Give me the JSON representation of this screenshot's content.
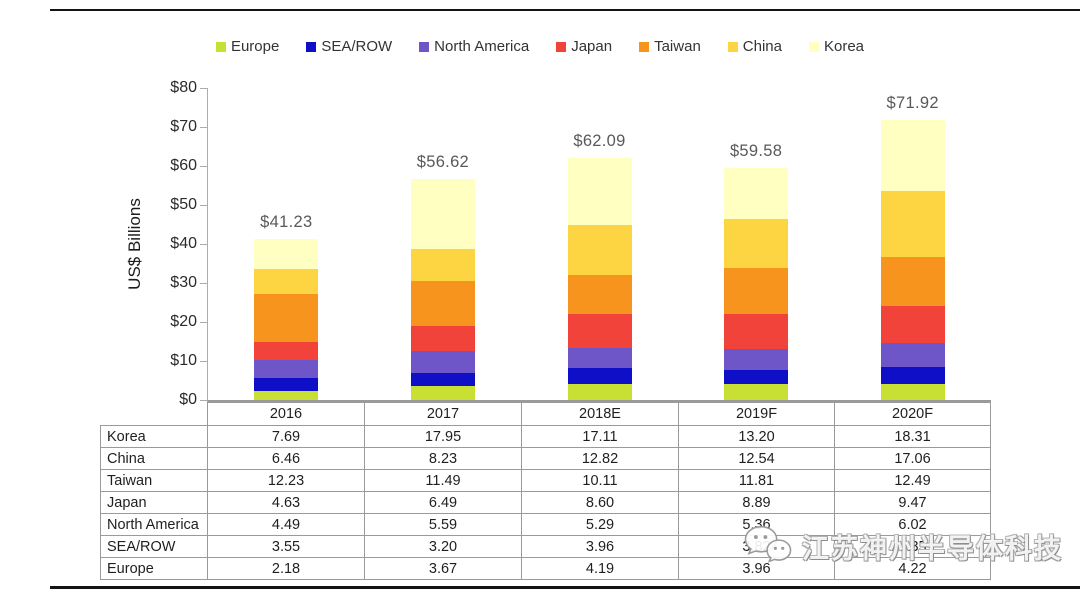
{
  "y_axis": {
    "title": "US$ Billions",
    "ticks": [
      "$0",
      "$10",
      "$20",
      "$30",
      "$40",
      "$50",
      "$60",
      "$70",
      "$80"
    ]
  },
  "chart_data": {
    "type": "bar",
    "stacked": true,
    "categories": [
      "2016",
      "2017",
      "2018E",
      "2019F",
      "2020F"
    ],
    "series": [
      {
        "name": "Europe",
        "color": "#c8df33",
        "values": [
          2.18,
          3.67,
          4.19,
          3.96,
          4.22
        ]
      },
      {
        "name": "SEA/ROW",
        "color": "#0f0fc7",
        "values": [
          3.55,
          3.2,
          3.96,
          3.82,
          4.35
        ]
      },
      {
        "name": "North America",
        "color": "#6f56c8",
        "values": [
          4.49,
          5.59,
          5.29,
          5.36,
          6.02
        ]
      },
      {
        "name": "Japan",
        "color": "#f2433a",
        "values": [
          4.63,
          6.49,
          8.6,
          8.89,
          9.47
        ]
      },
      {
        "name": "Taiwan",
        "color": "#f7941e",
        "values": [
          12.23,
          11.49,
          10.11,
          11.81,
          12.49
        ]
      },
      {
        "name": "China",
        "color": "#fdd542",
        "values": [
          6.46,
          8.23,
          12.82,
          12.54,
          17.06
        ]
      },
      {
        "name": "Korea",
        "color": "#ffffc2",
        "values": [
          7.69,
          17.95,
          17.11,
          13.2,
          18.31
        ]
      }
    ],
    "total_labels": [
      "$41.23",
      "$56.62",
      "$62.09",
      "$59.58",
      "$71.92"
    ],
    "title": "",
    "xlabel": "",
    "ylabel": "US$ Billions",
    "ylim": [
      0,
      80
    ],
    "grid": false,
    "legend_position": "top"
  },
  "table": {
    "columns": [
      "",
      "2016",
      "2017",
      "2018E",
      "2019F",
      "2020F"
    ],
    "rows": [
      {
        "label": "Korea",
        "values": [
          "7.69",
          "17.95",
          "17.11",
          "13.20",
          "18.31"
        ]
      },
      {
        "label": "China",
        "values": [
          "6.46",
          "8.23",
          "12.82",
          "12.54",
          "17.06"
        ]
      },
      {
        "label": "Taiwan",
        "values": [
          "12.23",
          "11.49",
          "10.11",
          "11.81",
          "12.49"
        ]
      },
      {
        "label": "Japan",
        "values": [
          "4.63",
          "6.49",
          "8.60",
          "8.89",
          "9.47"
        ]
      },
      {
        "label": "North America",
        "values": [
          "4.49",
          "5.59",
          "5.29",
          "5.36",
          "6.02"
        ]
      },
      {
        "label": "SEA/ROW",
        "values": [
          "3.55",
          "3.20",
          "3.96",
          "3.82",
          "4.35"
        ]
      },
      {
        "label": "Europe",
        "values": [
          "2.18",
          "3.67",
          "4.19",
          "3.96",
          "4.22"
        ]
      }
    ]
  },
  "watermark": {
    "icon": "wechat-icon",
    "text": "江苏神州半导体科技"
  }
}
